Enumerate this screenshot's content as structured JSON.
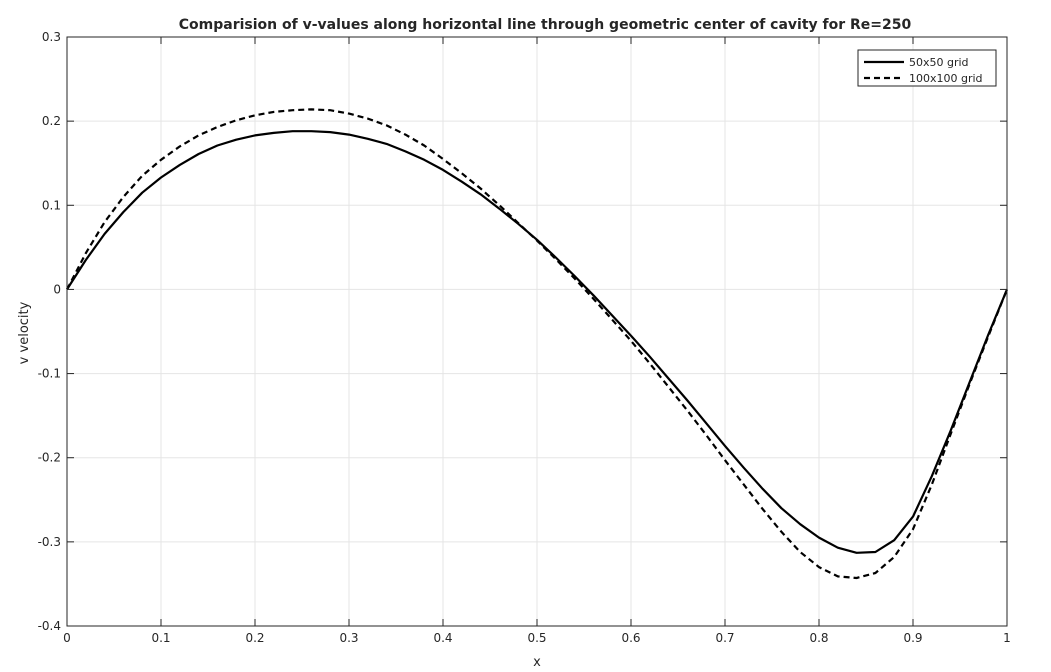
{
  "chart_data": {
    "type": "line",
    "title": "Comparision of v-values along horizontal line through geometric center of cavity for Re=250",
    "xlabel": "x",
    "ylabel": "v velocity",
    "xlim": [
      0,
      1
    ],
    "ylim": [
      -0.4,
      0.3
    ],
    "xticks": [
      0,
      0.1,
      0.2,
      0.3,
      0.4,
      0.5,
      0.6,
      0.7,
      0.8,
      0.9,
      1
    ],
    "xtick_labels": [
      "0",
      "0.1",
      "0.2",
      "0.3",
      "0.4",
      "0.5",
      "0.6",
      "0.7",
      "0.8",
      "0.9",
      "1"
    ],
    "yticks": [
      0.3,
      0.2,
      0.1,
      0,
      -0.1,
      -0.2,
      -0.3,
      -0.4
    ],
    "ytick_labels": [
      "0.3",
      "0.2",
      "0.1",
      "0",
      "-0.1",
      "-0.2",
      "-0.3",
      "-0.4"
    ],
    "grid": true,
    "legend_position": "top-right",
    "series": [
      {
        "name": "50x50 grid",
        "style": "solid",
        "color": "#000000",
        "x": [
          0,
          0.02,
          0.04,
          0.06,
          0.08,
          0.1,
          0.12,
          0.14,
          0.16,
          0.18,
          0.2,
          0.22,
          0.24,
          0.26,
          0.28,
          0.3,
          0.32,
          0.34,
          0.36,
          0.38,
          0.4,
          0.42,
          0.44,
          0.46,
          0.48,
          0.5,
          0.52,
          0.54,
          0.56,
          0.58,
          0.6,
          0.62,
          0.64,
          0.66,
          0.68,
          0.7,
          0.72,
          0.74,
          0.76,
          0.78,
          0.8,
          0.82,
          0.84,
          0.86,
          0.88,
          0.9,
          0.92,
          0.94,
          0.96,
          0.98,
          1.0
        ],
        "y": [
          0,
          0.035,
          0.066,
          0.092,
          0.115,
          0.133,
          0.148,
          0.161,
          0.171,
          0.178,
          0.183,
          0.186,
          0.188,
          0.188,
          0.187,
          0.184,
          0.179,
          0.173,
          0.164,
          0.154,
          0.142,
          0.128,
          0.113,
          0.096,
          0.078,
          0.059,
          0.038,
          0.016,
          -0.007,
          -0.031,
          -0.055,
          -0.08,
          -0.106,
          -0.132,
          -0.159,
          -0.186,
          -0.212,
          -0.237,
          -0.26,
          -0.279,
          -0.295,
          -0.307,
          -0.313,
          -0.312,
          -0.298,
          -0.27,
          -0.222,
          -0.168,
          -0.111,
          -0.054,
          0
        ]
      },
      {
        "name": "100x100 grid",
        "style": "dashed",
        "color": "#000000",
        "x": [
          0,
          0.02,
          0.04,
          0.06,
          0.08,
          0.1,
          0.12,
          0.14,
          0.16,
          0.18,
          0.2,
          0.22,
          0.24,
          0.26,
          0.28,
          0.3,
          0.32,
          0.34,
          0.36,
          0.38,
          0.4,
          0.42,
          0.44,
          0.46,
          0.48,
          0.5,
          0.52,
          0.54,
          0.56,
          0.58,
          0.6,
          0.62,
          0.64,
          0.66,
          0.68,
          0.7,
          0.72,
          0.74,
          0.76,
          0.78,
          0.8,
          0.82,
          0.84,
          0.86,
          0.88,
          0.9,
          0.92,
          0.94,
          0.96,
          0.98,
          1.0
        ],
        "y": [
          0,
          0.043,
          0.08,
          0.11,
          0.135,
          0.154,
          0.17,
          0.183,
          0.193,
          0.201,
          0.207,
          0.211,
          0.213,
          0.214,
          0.213,
          0.209,
          0.203,
          0.195,
          0.184,
          0.171,
          0.155,
          0.138,
          0.12,
          0.1,
          0.079,
          0.058,
          0.036,
          0.013,
          -0.011,
          -0.036,
          -0.061,
          -0.088,
          -0.116,
          -0.144,
          -0.173,
          -0.203,
          -0.232,
          -0.261,
          -0.288,
          -0.312,
          -0.33,
          -0.341,
          -0.343,
          -0.337,
          -0.318,
          -0.285,
          -0.232,
          -0.172,
          -0.113,
          -0.056,
          0
        ]
      }
    ]
  }
}
